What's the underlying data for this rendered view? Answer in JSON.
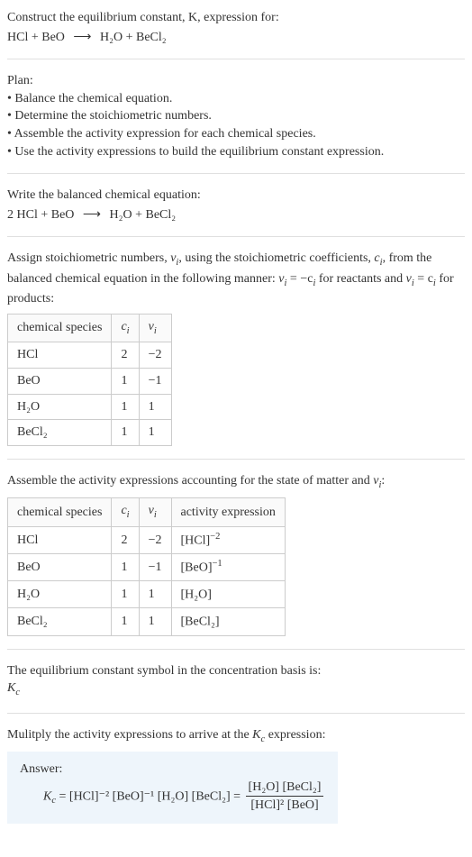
{
  "header": {
    "line1": "Construct the equilibrium constant, K, expression for:",
    "equation_lhs": "HCl + BeO",
    "equation_rhs": "H₂O + BeCl₂"
  },
  "plan": {
    "title": "Plan:",
    "items": [
      "• Balance the chemical equation.",
      "• Determine the stoichiometric numbers.",
      "• Assemble the activity expression for each chemical species.",
      "• Use the activity expressions to build the equilibrium constant expression."
    ]
  },
  "balanced": {
    "title": "Write the balanced chemical equation:",
    "lhs": "2 HCl + BeO",
    "rhs": "H₂O + BeCl₂"
  },
  "assign": {
    "text_a": "Assign stoichiometric numbers, ",
    "nu": "ν",
    "sub_i": "i",
    "text_b": ", using the stoichiometric coefficients, ",
    "c": "c",
    "text_c": ", from the balanced chemical equation in the following manner: ",
    "eq1_lhs": "ν",
    "eq1_rhs": " = −c",
    "text_d": " for reactants and ",
    "eq2": " = c",
    "text_e": " for products:"
  },
  "table1": {
    "headers": [
      "chemical species",
      "cᵢ",
      "νᵢ"
    ],
    "rows": [
      [
        "HCl",
        "2",
        "−2"
      ],
      [
        "BeO",
        "1",
        "−1"
      ],
      [
        "H₂O",
        "1",
        "1"
      ],
      [
        "BeCl₂",
        "1",
        "1"
      ]
    ]
  },
  "assemble": {
    "text": "Assemble the activity expressions accounting for the state of matter and νᵢ:"
  },
  "table2": {
    "headers": [
      "chemical species",
      "cᵢ",
      "νᵢ",
      "activity expression"
    ],
    "rows": [
      {
        "species": "HCl",
        "c": "2",
        "nu": "−2",
        "act_base": "[HCl]",
        "act_exp": "−2"
      },
      {
        "species": "BeO",
        "c": "1",
        "nu": "−1",
        "act_base": "[BeO]",
        "act_exp": "−1"
      },
      {
        "species": "H₂O",
        "c": "1",
        "nu": "1",
        "act_base": "[H₂O]",
        "act_exp": ""
      },
      {
        "species": "BeCl₂",
        "c": "1",
        "nu": "1",
        "act_base": "[BeCl₂]",
        "act_exp": ""
      }
    ]
  },
  "symbol": {
    "line1": "The equilibrium constant symbol in the concentration basis is:",
    "Kc": "K",
    "Kc_sub": "c"
  },
  "multiply": {
    "text_a": "Mulitply the activity expressions to arrive at the ",
    "K": "K",
    "Ksub": "c",
    "text_b": " expression:"
  },
  "answer": {
    "label": "Answer:",
    "Kc": "K",
    "Kc_sub": "c",
    "eq_text": " = [HCl]⁻² [BeO]⁻¹ [H₂O] [BeCl₂] = ",
    "num": "[H₂O] [BeCl₂]",
    "den": "[HCl]² [BeO]"
  },
  "colors": {
    "text": "#333333",
    "rule": "#e0e0e0",
    "table_border": "#cccccc",
    "answer_bg": "#eef5fb"
  }
}
